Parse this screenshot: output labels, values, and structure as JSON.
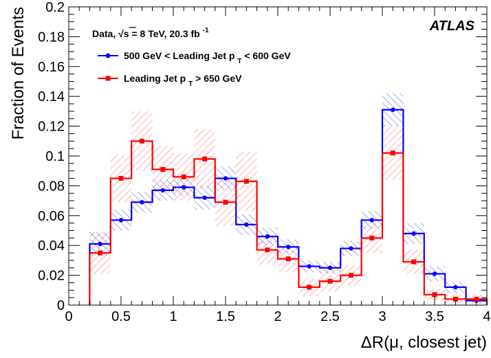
{
  "chart_data": {
    "type": "histogram",
    "xlabel": "ΔR(μ, closest jet)",
    "ylabel": "Fraction of Events",
    "xlim": [
      0,
      4
    ],
    "ylim": [
      0,
      0.2
    ],
    "x_ticks": [
      "0",
      "0.5",
      "1",
      "1.5",
      "2",
      "2.5",
      "3",
      "3.5",
      "4"
    ],
    "y_ticks": [
      "0",
      "0.02",
      "0.04",
      "0.06",
      "0.08",
      "0.1",
      "0.12",
      "0.14",
      "0.16",
      "0.18",
      "0.2"
    ],
    "bin_edges": [
      0.2,
      0.4,
      0.6,
      0.8,
      1.0,
      1.2,
      1.4,
      1.6,
      1.8,
      2.0,
      2.2,
      2.4,
      2.6,
      2.8,
      3.0,
      3.2,
      3.4,
      3.6,
      3.8,
      4.0
    ],
    "annotation": {
      "data_label": "Data, ",
      "sqrt_s": "√s = 8 TeV, 20.3 fb",
      "sqrt_s_sup": "-1",
      "experiment": "ATLAS"
    },
    "series": [
      {
        "name_main": "500 GeV < Leading Jet p",
        "name_sub": "T",
        "name_tail": " < 600 GeV",
        "color": "#0000ff",
        "marker": "circle",
        "values": [
          0.041,
          0.057,
          0.069,
          0.077,
          0.079,
          0.072,
          0.085,
          0.054,
          0.046,
          0.039,
          0.026,
          0.025,
          0.038,
          0.057,
          0.131,
          0.048,
          0.021,
          0.012,
          0.003
        ],
        "unc": [
          0.008,
          0.007,
          0.007,
          0.007,
          0.006,
          0.008,
          0.008,
          0.007,
          0.006,
          0.005,
          0.004,
          0.004,
          0.005,
          0.006,
          0.011,
          0.007,
          0.005,
          0.004,
          0.002
        ]
      },
      {
        "name_main": "Leading Jet p",
        "name_sub": "T",
        "name_tail": " > 650 GeV",
        "color": "#ff0000",
        "marker": "square",
        "values": [
          0.035,
          0.085,
          0.11,
          0.091,
          0.086,
          0.098,
          0.069,
          0.083,
          0.037,
          0.031,
          0.012,
          0.016,
          0.02,
          0.045,
          0.102,
          0.029,
          0.007,
          0.004,
          0.004
        ],
        "unc": [
          0.014,
          0.016,
          0.02,
          0.016,
          0.016,
          0.02,
          0.016,
          0.02,
          0.01,
          0.009,
          0.006,
          0.007,
          0.007,
          0.01,
          0.018,
          0.008,
          0.004,
          0.003,
          0.003
        ]
      }
    ]
  }
}
